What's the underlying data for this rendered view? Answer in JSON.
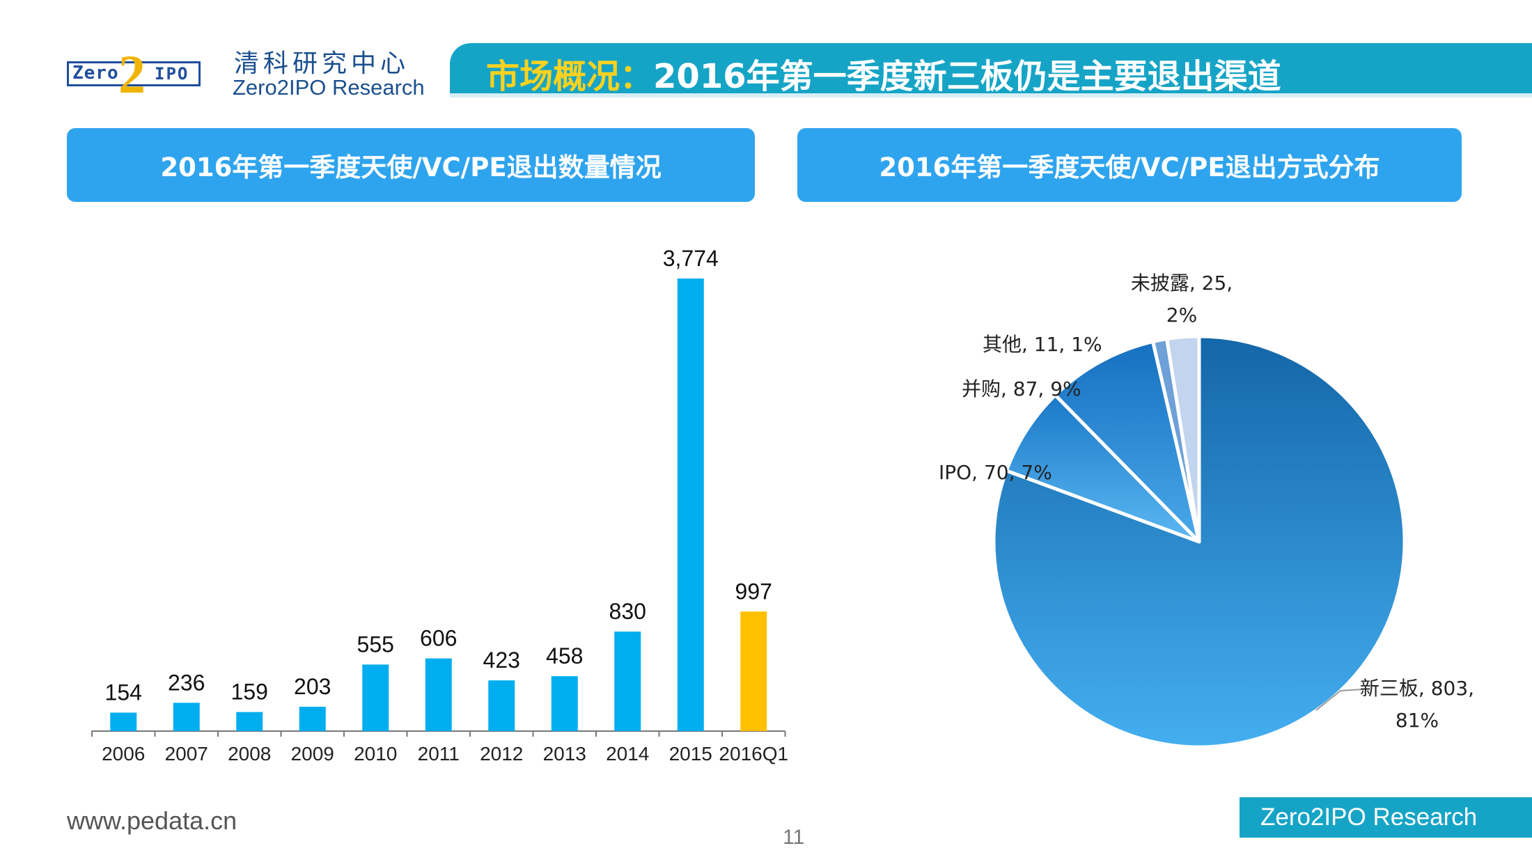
{
  "header": {
    "logo_left": "Zero",
    "logo_two": "2",
    "logo_right": "IPO",
    "org_cn": "清科研究中心",
    "org_en": "Zero2IPO Research",
    "title_highlight": "市场概况：",
    "title_main": "2016年第一季度新三板仍是主要退出渠道"
  },
  "left_panel": {
    "heading": "2016年第一季度天使/VC/PE退出数量情况"
  },
  "right_panel": {
    "heading": "2016年第一季度天使/VC/PE退出方式分布"
  },
  "colors": {
    "bar": "#00aeef",
    "bar_highlight": "#ffc000",
    "pie_main": "#2d8fd8",
    "pie_light": "#b7cbe8"
  },
  "chart_data": [
    {
      "type": "bar",
      "title": "2016年第一季度天使/VC/PE退出数量情况",
      "xlabel": "",
      "ylabel": "",
      "categories": [
        "2006",
        "2007",
        "2008",
        "2009",
        "2010",
        "2011",
        "2012",
        "2013",
        "2014",
        "2015",
        "2016Q1"
      ],
      "values": [
        154,
        236,
        159,
        203,
        555,
        606,
        423,
        458,
        830,
        3774,
        997
      ],
      "data_labels": [
        "154",
        "236",
        "159",
        "203",
        "555",
        "606",
        "423",
        "458",
        "830",
        "3,774",
        "997"
      ],
      "highlight_index": 10,
      "ylim": [
        0,
        3774
      ]
    },
    {
      "type": "pie",
      "title": "2016年第一季度天使/VC/PE退出方式分布",
      "slices": [
        {
          "name": "新三板",
          "value": 803,
          "percent": "81%",
          "label_line1": "新三板, 803,",
          "label_line2": "81%"
        },
        {
          "name": "IPO",
          "value": 70,
          "percent": "7%",
          "label_line1": "IPO, 70, 7%",
          "label_line2": ""
        },
        {
          "name": "并购",
          "value": 87,
          "percent": "9%",
          "label_line1": "并购, 87, 9%",
          "label_line2": ""
        },
        {
          "name": "其他",
          "value": 11,
          "percent": "1%",
          "label_line1": "其他, 11, 1%",
          "label_line2": ""
        },
        {
          "name": "未披露",
          "value": 25,
          "percent": "2%",
          "label_line1": "未披露, 25,",
          "label_line2": "2%"
        }
      ]
    }
  ],
  "footer": {
    "site": "www.pedata.cn",
    "page": "11",
    "brand": "Zero2IPO Research"
  }
}
